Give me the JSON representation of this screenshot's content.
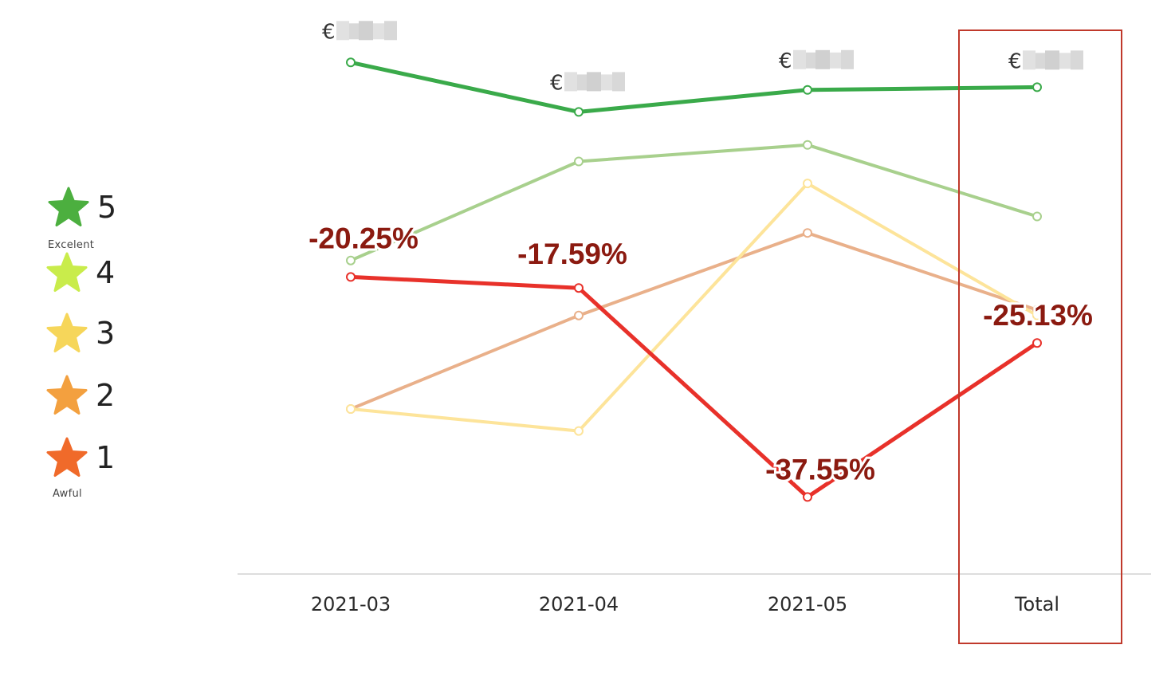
{
  "chart_data": {
    "type": "line",
    "categories": [
      "2021-03",
      "2021-04",
      "2021-05",
      "Total"
    ],
    "ylim": [
      0,
      100
    ],
    "grid": false,
    "highlight_category": "Total",
    "series": [
      {
        "stars": 5,
        "color": "#3aaa4a",
        "values": [
          93,
          84,
          88,
          88.5
        ]
      },
      {
        "stars": 4,
        "color": "#a8d08d",
        "values": [
          57,
          75,
          78,
          65
        ]
      },
      {
        "stars": 3,
        "color": "#fde49a",
        "values": [
          30,
          26,
          71,
          47
        ]
      },
      {
        "stars": 2,
        "color": "#e9b08a",
        "values": [
          30,
          47,
          62,
          48
        ]
      },
      {
        "stars": 1,
        "color": "#e8312a",
        "values": [
          54,
          52,
          14,
          42
        ]
      }
    ],
    "top_labels": [
      "€",
      "€",
      "€",
      "€"
    ],
    "pct_labels": [
      "-20.25%",
      "-17.59%",
      "-37.55%",
      "-25.13%"
    ]
  },
  "legend": {
    "items": [
      {
        "num": "5",
        "color": "#4caf3f"
      },
      {
        "num": "4",
        "color": "#c9ec4b"
      },
      {
        "num": "3",
        "color": "#f6d65a"
      },
      {
        "num": "2",
        "color": "#f3a03f"
      },
      {
        "num": "1",
        "color": "#f06a2a"
      }
    ],
    "top_caption": "Excelent",
    "bottom_caption": "Awful"
  },
  "colors": {
    "highlight_box": "#c0392b",
    "axis": "#dddddd",
    "blur": "#c8c8c8"
  }
}
